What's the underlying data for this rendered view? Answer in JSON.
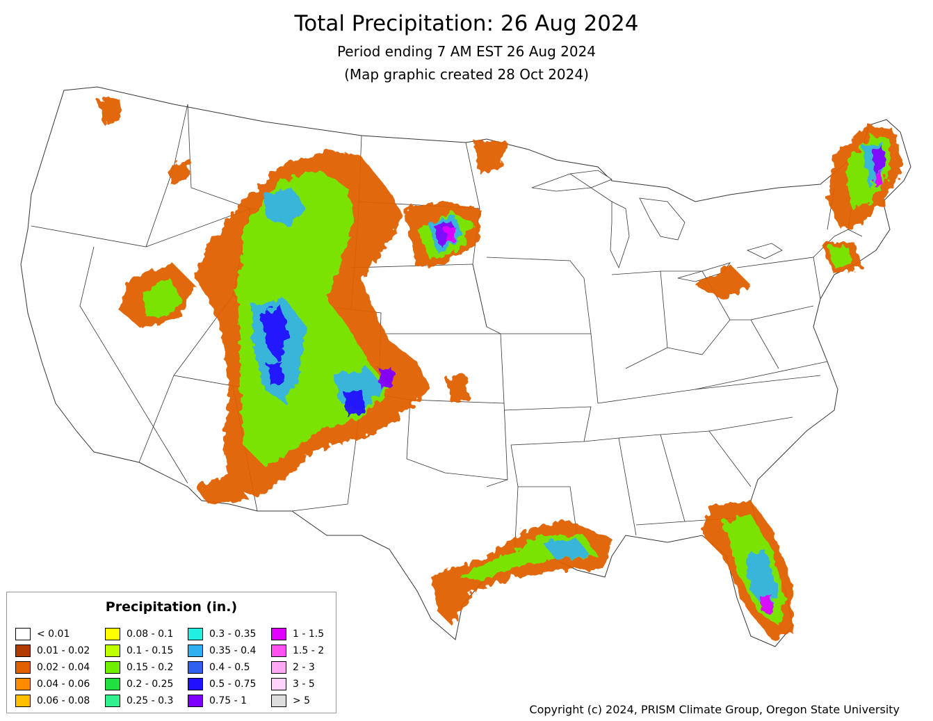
{
  "map": {
    "title": "Total Precipitation: 26 Aug 2024",
    "subtitle_period": "Period ending 7 AM EST 26 Aug 2024",
    "subtitle_created": "(Map graphic created 28 Oct 2024)",
    "copyright": "Copyright (c) 2024, PRISM Climate Group, Oregon State University"
  },
  "legend": {
    "title": "Precipitation (in.)",
    "items": [
      {
        "label": "< 0.01",
        "color": "#ffffff"
      },
      {
        "label": "0.01 - 0.02",
        "color": "#b03a00"
      },
      {
        "label": "0.02 - 0.04",
        "color": "#e06000"
      },
      {
        "label": "0.04 - 0.06",
        "color": "#ff8c00"
      },
      {
        "label": "0.06 - 0.08",
        "color": "#ffc000"
      },
      {
        "label": "0.08 - 0.1",
        "color": "#ffff00"
      },
      {
        "label": "0.1 - 0.15",
        "color": "#c0ff00"
      },
      {
        "label": "0.15 - 0.2",
        "color": "#70f000"
      },
      {
        "label": "0.2 - 0.25",
        "color": "#20e040"
      },
      {
        "label": "0.25 - 0.3",
        "color": "#30f090"
      },
      {
        "label": "0.3 - 0.35",
        "color": "#20f0e0"
      },
      {
        "label": "0.35 - 0.4",
        "color": "#30b0f0"
      },
      {
        "label": "0.4 - 0.5",
        "color": "#3060f0"
      },
      {
        "label": "0.5 - 0.75",
        "color": "#2010ff"
      },
      {
        "label": "0.75 - 1",
        "color": "#8000ff"
      },
      {
        "label": "1 - 1.5",
        "color": "#e000ff"
      },
      {
        "label": "1.5 - 2",
        "color": "#ff50f0"
      },
      {
        "label": "2 - 3",
        "color": "#ffa8f4"
      },
      {
        "label": "3 - 5",
        "color": "#ffd4fa"
      },
      {
        "label": "> 5",
        "color": "#dddddd"
      }
    ]
  }
}
